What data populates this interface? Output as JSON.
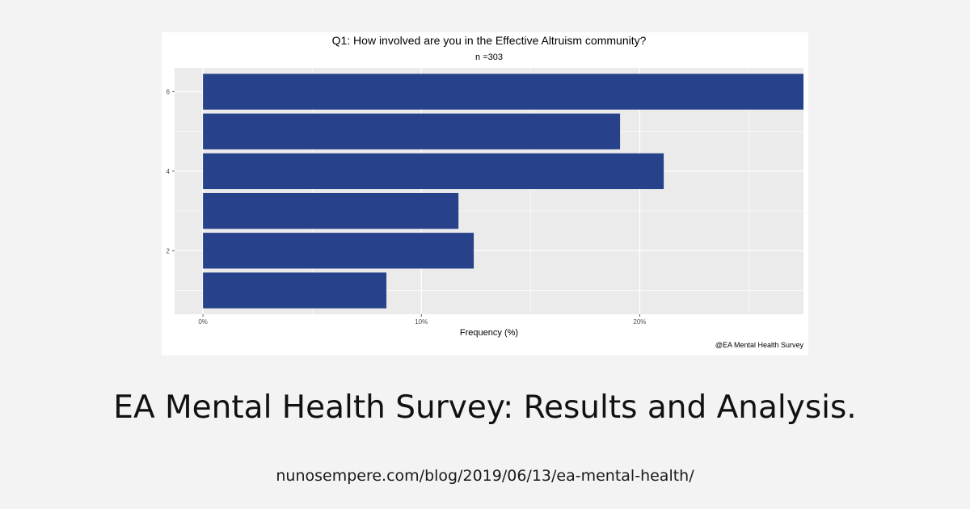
{
  "page": {
    "headline": "EA Mental Health Survey: Results and Analysis.",
    "link": "nunosempere.com/blog/2019/06/13/ea-mental-health/"
  },
  "colors": {
    "background": "#f3f3f3",
    "panel": "#ebebeb",
    "bar": "#27418a",
    "grid": "#ffffff"
  },
  "chart_data": {
    "type": "bar",
    "orientation": "horizontal",
    "title": "Q1: How involved are you in the Effective Altruism community?",
    "subtitle": "n =303",
    "xlabel": "Frequency (%)",
    "ylabel": "",
    "caption": "@EA Mental Health Survey",
    "categories": [
      1,
      2,
      3,
      4,
      5,
      6
    ],
    "values": [
      8.4,
      12.4,
      11.7,
      21.1,
      19.1,
      27.5
    ],
    "xlim": [
      -1.3,
      27.5
    ],
    "ylim": [
      0.4,
      6.6
    ],
    "x_ticks": [
      0,
      10,
      20
    ],
    "x_tick_labels": [
      "0%",
      "10%",
      "20%"
    ],
    "y_ticks": [
      2,
      4,
      6
    ],
    "y_tick_labels": [
      "2",
      "4",
      "6"
    ],
    "grid": true,
    "legend": "none"
  }
}
